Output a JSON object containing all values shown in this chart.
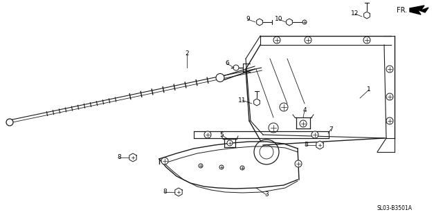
{
  "bg_color": "#ffffff",
  "line_color": "#1a1a1a",
  "diagram_code": "SL03-B3501A",
  "fig_size": [
    6.4,
    3.17
  ],
  "dpi": 100
}
